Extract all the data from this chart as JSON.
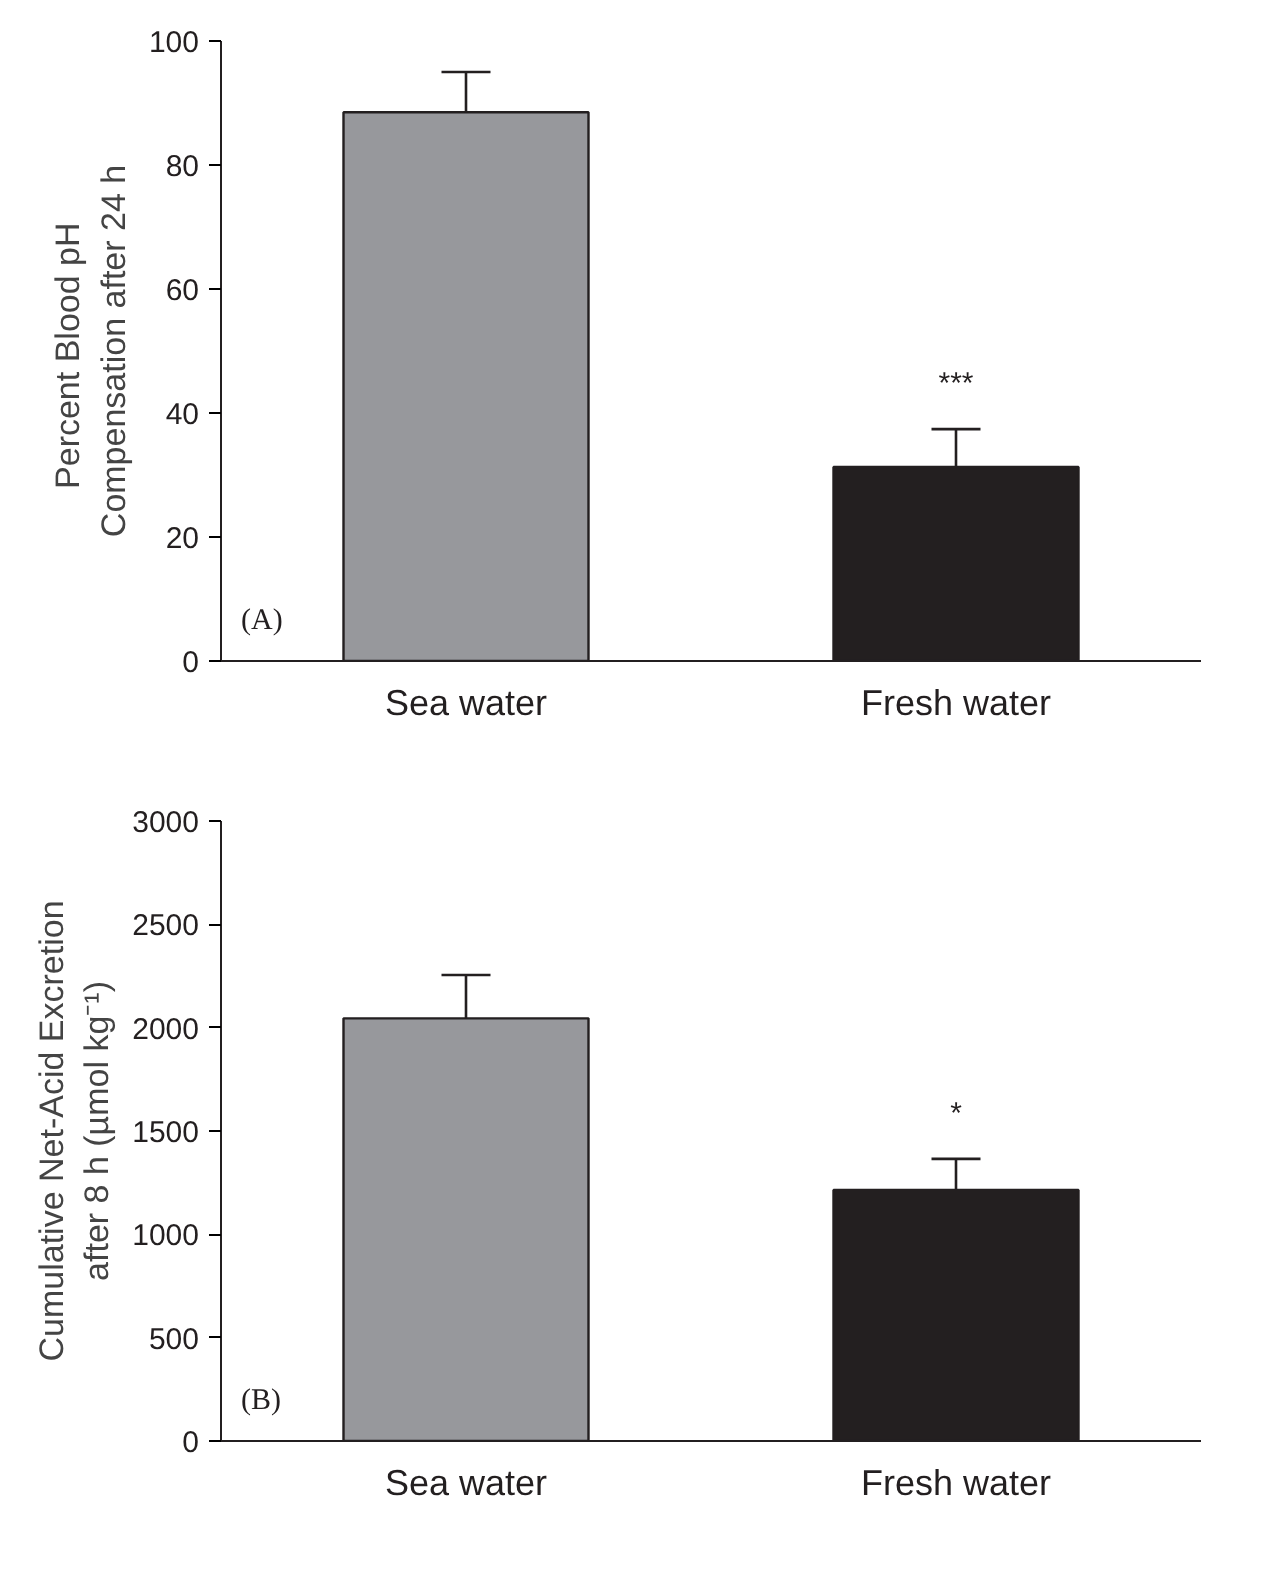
{
  "chart_data": [
    {
      "type": "bar",
      "categories": [
        "Sea water",
        "Fresh water"
      ],
      "values": [
        88.5,
        31.3
      ],
      "colors": [
        "#97989c",
        "#231f20"
      ],
      "errors": [
        [
          88.5,
          95
        ],
        [
          31.3,
          37.4
        ]
      ],
      "ylabel": "Percent  Blood pH\nCompensation after 24 h",
      "ylim": [
        0,
        100
      ],
      "yticks": [
        0,
        20,
        40,
        60,
        80,
        100
      ],
      "grid": false,
      "annotations": [
        {
          "text": "***",
          "x": "Fresh water",
          "y": 37.4
        },
        "(A)"
      ]
    },
    {
      "type": "bar",
      "categories": [
        "Sea water",
        "Fresh water"
      ],
      "values": [
        2045,
        1215
      ],
      "colors": [
        "#97989c",
        "#231f20"
      ],
      "errors": [
        [
          2045,
          2255
        ],
        [
          1215,
          1365
        ]
      ],
      "ylabel": "Cumulative Net-Acid Excretion\nafter 8 h (µmol kg⁻¹)",
      "ylim": [
        0,
        3000
      ],
      "yticks": [
        0,
        500,
        1000,
        1500,
        2000,
        2500,
        3000
      ],
      "grid": false,
      "annotations": [
        {
          "text": "*",
          "x": "Fresh water",
          "y": 1365
        },
        "(B)"
      ]
    }
  ]
}
